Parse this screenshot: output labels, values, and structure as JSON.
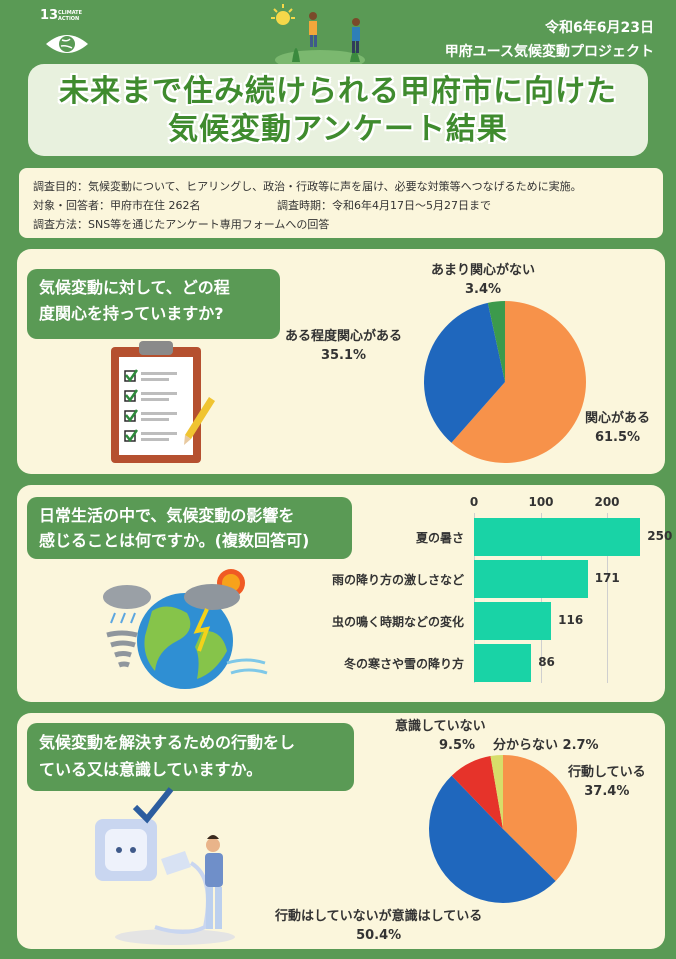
{
  "header": {
    "sdg_number": "13",
    "sdg_label": "CLIMATE ACTION",
    "date": "令和6年6月23日",
    "project": "甲府ユース気候変動プロジェクト"
  },
  "title": {
    "line1": "未来まで住み続けられる甲府市に向けた",
    "line2": "気候変動アンケート結果"
  },
  "survey_info": {
    "purpose": "調査目的：気候変動について、ヒアリングし、政治・行政等に声を届け、必要な対策等へつなげるために実施。",
    "target": "対象・回答者：甲府市在住 262名",
    "period": "調査時期：令和6年4月17日〜5月27日まで",
    "method": "調査方法：SNS等を通じたアンケート専用フォームへの回答"
  },
  "q1": {
    "question_line1": "気候変動に対して、どの程",
    "question_line2": "度関心を持っていますか?",
    "labels": {
      "kanshin": "関心がある",
      "kanshin_pct": "61.5%",
      "aru": "ある程度関心がある",
      "aru_pct": "35.1%",
      "amari": "あまり関心がない",
      "amari_pct": "3.4%"
    }
  },
  "q2": {
    "question_line1": "日常生活の中で、気候変動の影響を",
    "question_line2": "感じることは何ですか。(複数回答可)",
    "ticks": [
      "0",
      "100",
      "200"
    ]
  },
  "q3": {
    "question_line1": "気候変動を解決するための行動をし",
    "question_line2": "ている又は意識していますか。",
    "labels": {
      "ishiki_nai": "意識していない",
      "ishiki_nai_pct": "9.5%",
      "wakaranai": "分からない 2.7%",
      "kodo": "行動している",
      "kodo_pct": "37.4%",
      "kodo_nai": "行動はしていないが意識はしている",
      "kodo_nai_pct": "50.4%"
    }
  },
  "chart_data": [
    {
      "type": "pie",
      "categories": [
        "関心がある",
        "ある程度関心がある",
        "あまり関心がない"
      ],
      "values": [
        61.5,
        35.1,
        3.4
      ],
      "colors": [
        "#f7924a",
        "#1f67bd",
        "#3c9a4c"
      ]
    },
    {
      "type": "bar",
      "orientation": "horizontal",
      "categories": [
        "夏の暑さ",
        "雨の降り方の激しさなど",
        "虫の鳴く時期などの変化",
        "冬の寒さや雪の降り方"
      ],
      "values": [
        250,
        171,
        116,
        86
      ],
      "xlim": [
        0,
        270
      ],
      "ticks": [
        0,
        100,
        200
      ],
      "grid": true,
      "color": "#19d3a6"
    },
    {
      "type": "pie",
      "categories": [
        "行動している",
        "行動はしていないが意識はしている",
        "意識していない",
        "分からない"
      ],
      "values": [
        37.4,
        50.4,
        9.5,
        2.7
      ],
      "colors": [
        "#f7924a",
        "#1f67bd",
        "#e6332a",
        "#d7dd6a"
      ]
    }
  ],
  "icons": {
    "sdg": "eye-globe-icon",
    "clipboard": "clipboard-checklist-icon",
    "weather": "weather-globe-icon",
    "outlet": "power-outlet-icon"
  }
}
